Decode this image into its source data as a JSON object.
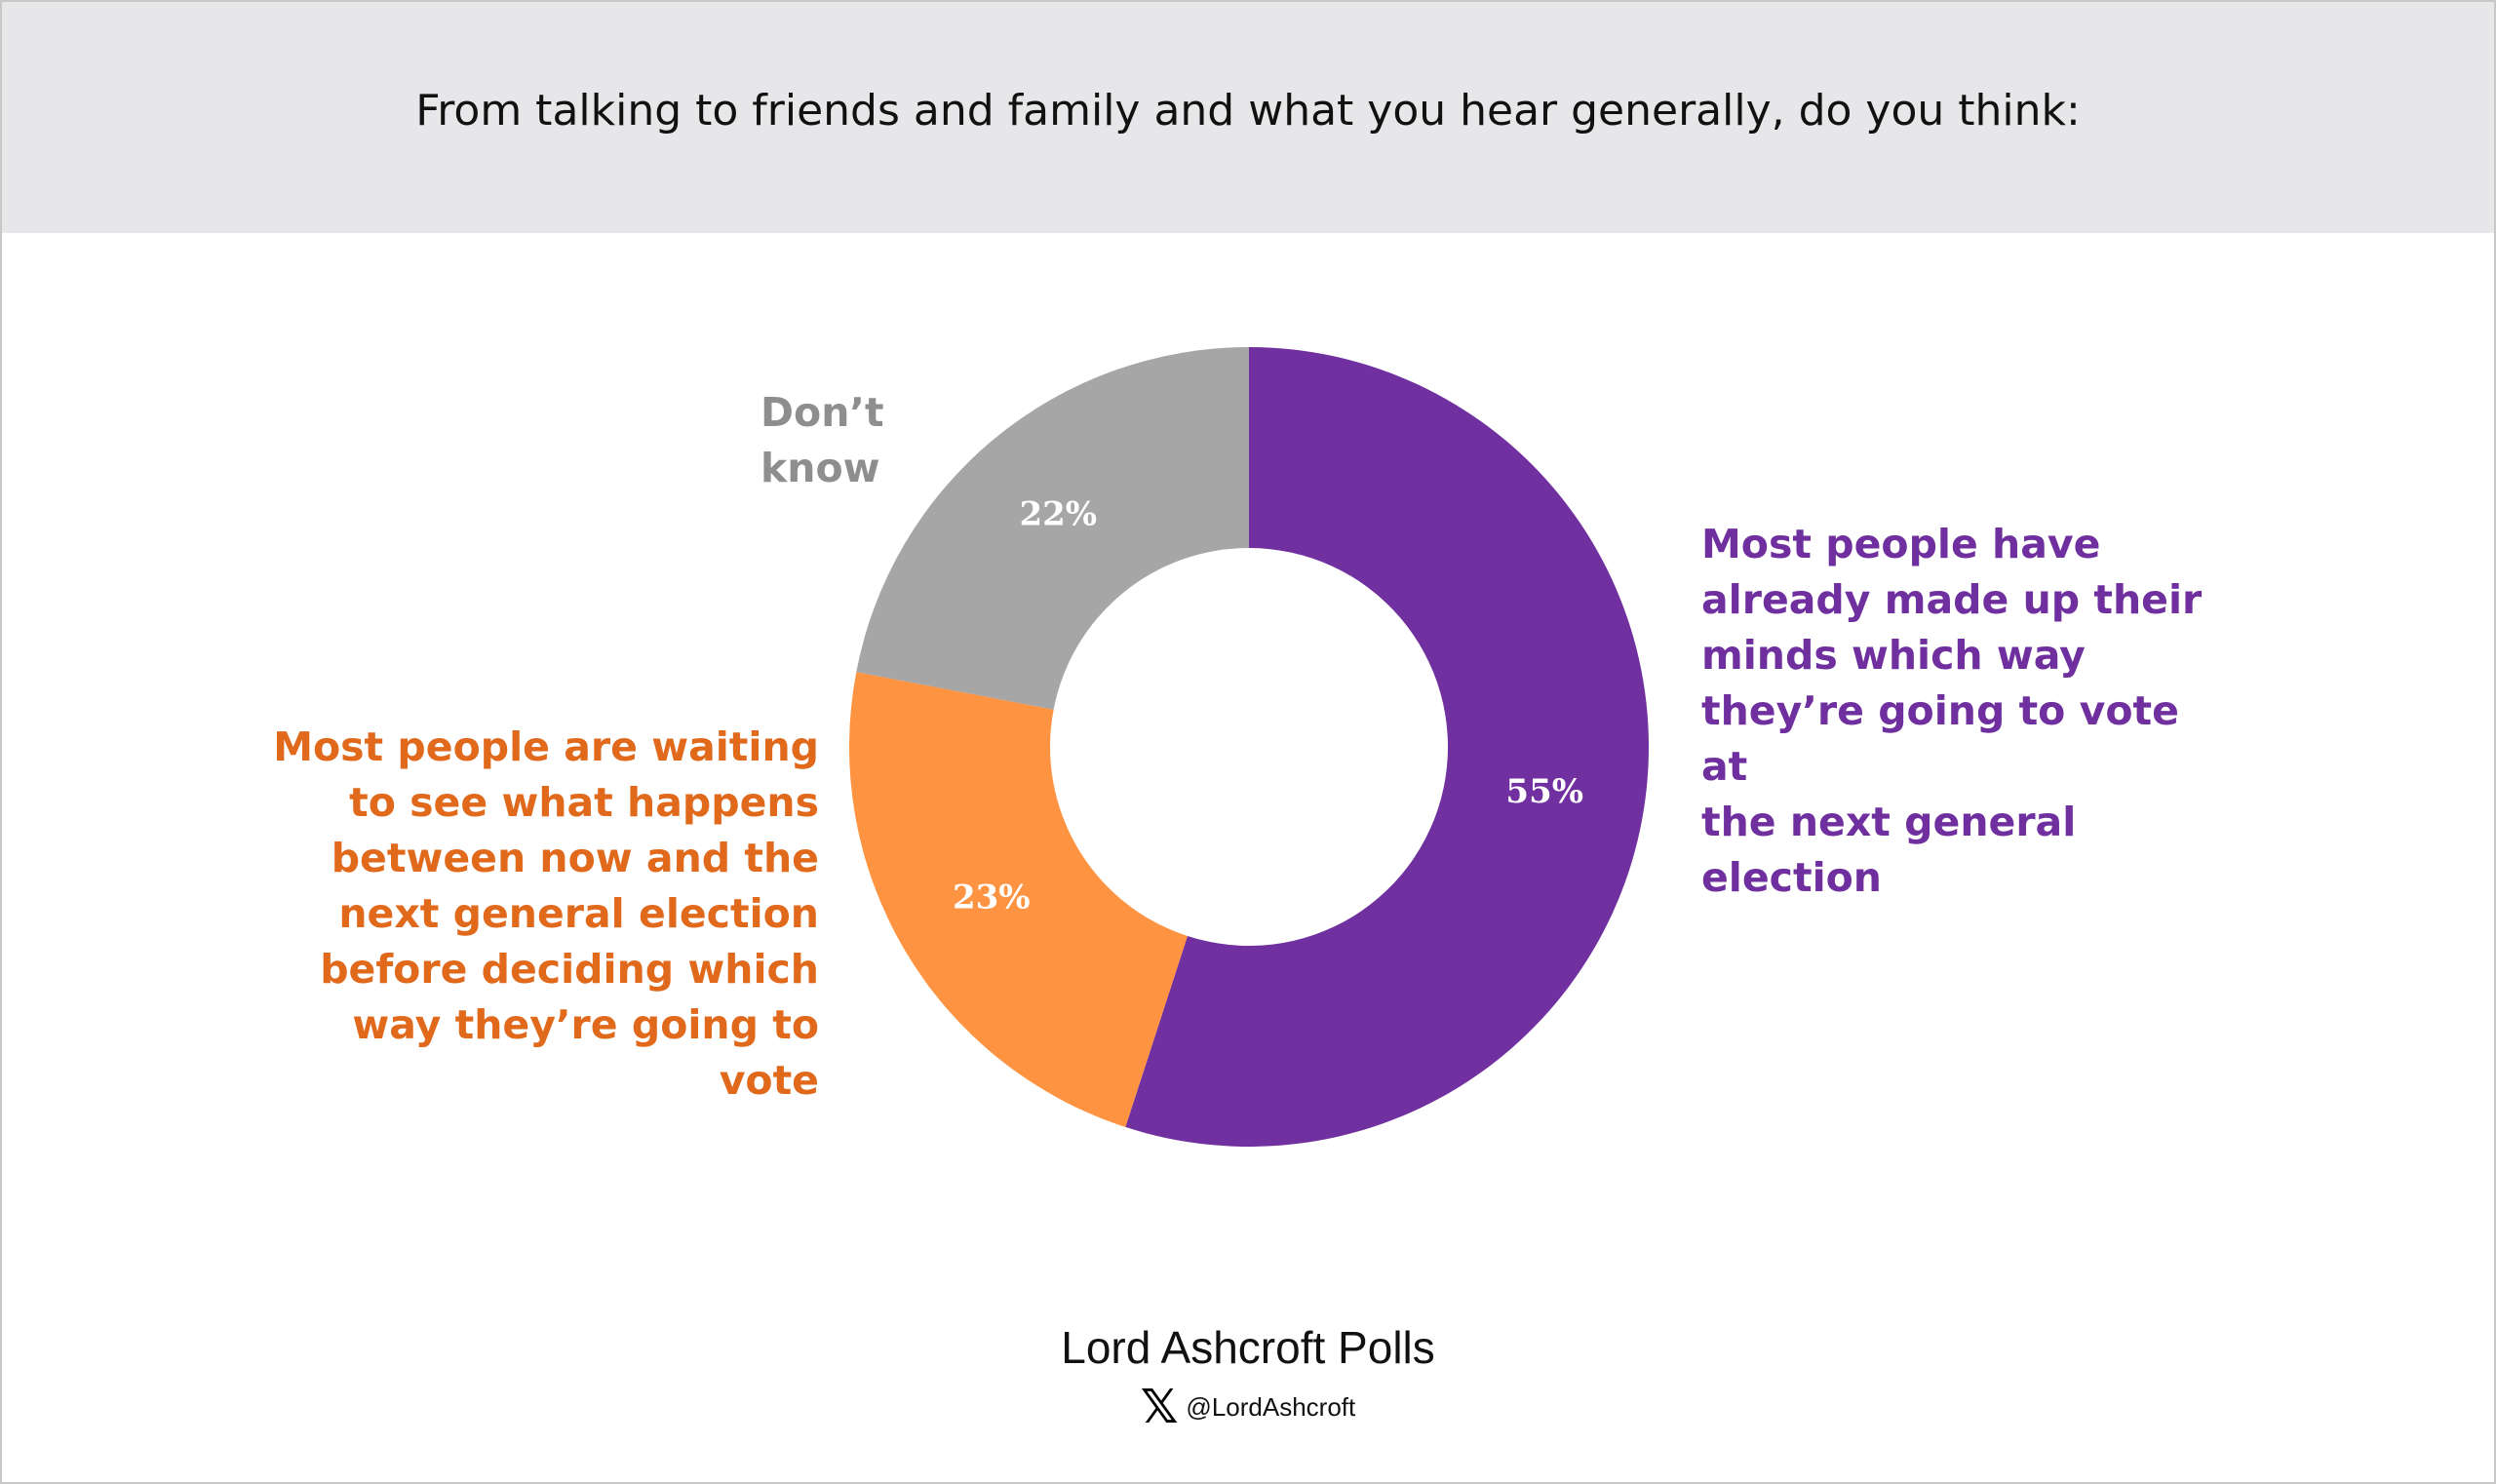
{
  "chart_data": {
    "type": "pie",
    "variant": "donut",
    "title": "From talking to friends and family and what you hear generally, do you think:",
    "categories": [
      "Most people have already made up their minds which way they’re going to vote at the next general election",
      "Most people are waiting to see what happens between now and the next general election before deciding which way they’re going to vote",
      "Don’t know"
    ],
    "values": [
      55,
      23,
      22
    ],
    "value_labels": [
      "55%",
      "23%",
      "22%"
    ],
    "colors": [
      "#7030a0",
      "#fe9341",
      "#a6a6a6"
    ],
    "label_colors": [
      "#6f2f9f",
      "#e0691c",
      "#8e8e8e"
    ],
    "label_lines": [
      [
        "Most people have",
        "already made up their",
        "minds which way",
        "they’re going to vote at",
        "the next general",
        "election"
      ],
      [
        "Most people are waiting",
        "to see what happens",
        "between now and the",
        "next general election",
        "before deciding which",
        "way they’re going to vote"
      ],
      [
        "Don’t",
        "know"
      ]
    ],
    "start_angle_deg": 0,
    "direction": "clockwise"
  },
  "footer": {
    "brand": "Lord Ashcroft Polls",
    "handle": "@LordAshcroft",
    "social_icon": "x-logo-icon"
  }
}
